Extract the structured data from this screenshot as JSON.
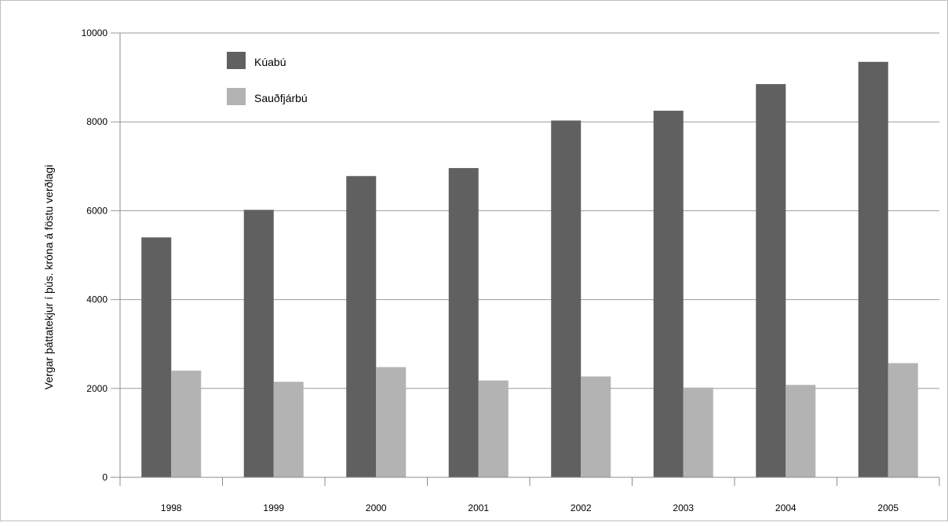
{
  "chart_data": {
    "type": "bar",
    "title": "",
    "xlabel": "",
    "ylabel": "Vergar þáttatekjur í þús. króna á föstu verðlagi",
    "categories": [
      "1998",
      "1999",
      "2000",
      "2001",
      "2002",
      "2003",
      "2004",
      "2005"
    ],
    "series": [
      {
        "name": "Kúabú",
        "color": "#606060",
        "values": [
          5400,
          6020,
          6780,
          6960,
          8030,
          8250,
          8850,
          9350
        ]
      },
      {
        "name": "Sauðfjárbú",
        "color": "#b3b3b3",
        "values": [
          2400,
          2150,
          2480,
          2180,
          2270,
          2020,
          2080,
          2570
        ]
      }
    ],
    "ylim": [
      0,
      10000
    ],
    "yticks": [
      "0",
      "2000",
      "4000",
      "6000",
      "8000",
      "10000"
    ],
    "grid": true,
    "legend_position": "top-left"
  }
}
